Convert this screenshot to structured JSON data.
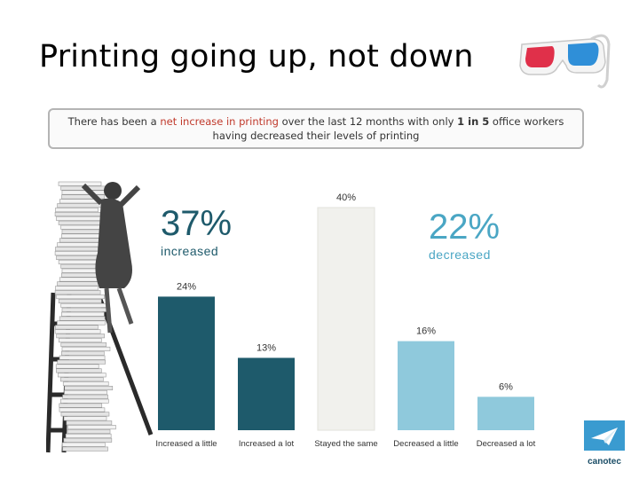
{
  "slide": {
    "title": "Printing going up, not down"
  },
  "banner": {
    "parts": [
      {
        "text": "There has been a ",
        "style": "plain"
      },
      {
        "text": "net increase in printing",
        "style": "hl"
      },
      {
        "text": " over the last 12 months with only ",
        "style": "plain"
      },
      {
        "text": "1 in 5",
        "style": "bold"
      },
      {
        "text": " office workers having decreased their levels of printing",
        "style": "plain"
      }
    ]
  },
  "stats": {
    "increased": {
      "value": "37%",
      "label": "increased"
    },
    "decreased": {
      "value": "22%",
      "label": "decreased"
    }
  },
  "logo": {
    "text": "canotec",
    "icon": "paper-plane-icon"
  },
  "decor": {
    "glasses_icon": "3d-glasses-icon",
    "image": "woman-on-ladder-with-paper-stack"
  },
  "colors": {
    "dark_teal": "#1e5a6b",
    "light_blue": "#8fc9dc",
    "neutral": "#f1f1ed",
    "highlight_red": "#c0392b"
  },
  "chart_data": {
    "type": "bar",
    "title": "",
    "xlabel": "",
    "ylabel": "",
    "categories": [
      "Increased a little",
      "Increased a lot",
      "Stayed the same",
      "Decreased a little",
      "Decreased a lot"
    ],
    "values": [
      24,
      13,
      40,
      16,
      6
    ],
    "value_labels": [
      "24%",
      "13%",
      "40%",
      "16%",
      "6%"
    ],
    "colors": [
      "#1e5a6b",
      "#1e5a6b",
      "#f1f1ed",
      "#8fc9dc",
      "#8fc9dc"
    ],
    "ylim": [
      0,
      40
    ],
    "grid": false,
    "legend": "none"
  }
}
